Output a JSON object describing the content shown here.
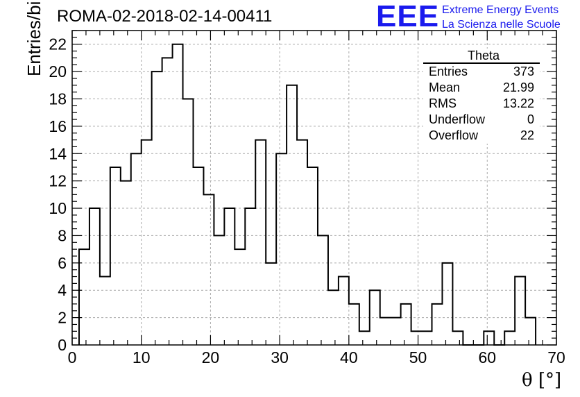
{
  "header": {
    "title": "ROMA-02-2018-02-14-00411",
    "logo_mark": "EEE",
    "logo_line1": "Extreme Energy Events",
    "logo_line2": "La Scienza nelle Scuole"
  },
  "stats_box": {
    "title": "Theta",
    "rows": [
      {
        "label": "Entries",
        "value": "373"
      },
      {
        "label": "Mean",
        "value": "21.99"
      },
      {
        "label": "RMS",
        "value": "13.22"
      },
      {
        "label": "Underflow",
        "value": "0"
      },
      {
        "label": "Overflow",
        "value": "22"
      }
    ]
  },
  "chart_data": {
    "type": "bar",
    "histogram": true,
    "title": "ROMA-02-2018-02-14-00411",
    "xlabel": "θ [°]",
    "ylabel": "Entries/bin",
    "xlim": [
      0,
      70
    ],
    "ylim": [
      0,
      23
    ],
    "bin_edges_start": 1,
    "bin_width": 1.5,
    "values": [
      7,
      10,
      5,
      13,
      12,
      14,
      15,
      20,
      21,
      22,
      18,
      13,
      11,
      8,
      10,
      7,
      10,
      15,
      6,
      14,
      19,
      15,
      13,
      8,
      4,
      5,
      3,
      1,
      4,
      2,
      2,
      3,
      1,
      1,
      3,
      6,
      1,
      0,
      0,
      1,
      0,
      1,
      5,
      2
    ],
    "xticks": [
      "0",
      "10",
      "20",
      "30",
      "40",
      "50",
      "60",
      "70"
    ],
    "yticks": [
      "0",
      "2",
      "4",
      "6",
      "8",
      "10",
      "12",
      "14",
      "16",
      "18",
      "20",
      "22"
    ],
    "grid": true,
    "line_color": "#000000",
    "grid_color": "#aaaaaa"
  }
}
